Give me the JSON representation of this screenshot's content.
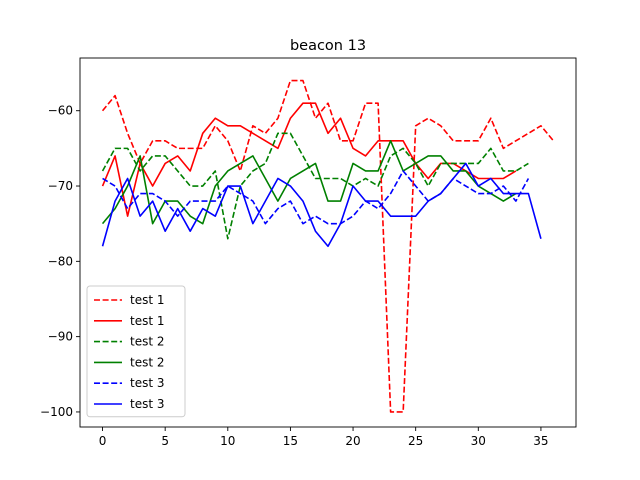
{
  "chart_data": {
    "type": "line",
    "title": "beacon 13",
    "xlabel": "",
    "ylabel": "",
    "xlim": [
      -1.8,
      37.8
    ],
    "ylim": [
      -102,
      -53
    ],
    "xticks": [
      0,
      5,
      10,
      15,
      20,
      25,
      30,
      35
    ],
    "yticks": [
      -100,
      -90,
      -80,
      -70,
      -60
    ],
    "grid": false,
    "legend_position": "lower-left",
    "series": [
      {
        "name": "test 1",
        "color": "#ff0000",
        "dash": "dashed",
        "x": [
          0,
          1,
          2,
          3,
          4,
          5,
          6,
          7,
          8,
          9,
          10,
          11,
          12,
          13,
          14,
          15,
          16,
          17,
          18,
          19,
          20,
          21,
          22,
          23,
          24,
          25,
          26,
          27,
          28,
          29,
          30,
          31,
          32,
          33,
          34,
          35,
          36
        ],
        "y": [
          -60,
          -58,
          -63,
          -67,
          -64,
          -64,
          -65,
          -65,
          -65,
          -62,
          -64,
          -68,
          -62,
          -63,
          -61,
          -56,
          -56,
          -61,
          -59,
          -64,
          -64,
          -59,
          -59,
          -100,
          -100,
          -62,
          -61,
          -62,
          -64,
          -64,
          -64,
          -61,
          -65,
          -64,
          -63,
          -62,
          -64
        ]
      },
      {
        "name": "test 1",
        "color": "#ff0000",
        "dash": "solid",
        "x": [
          0,
          1,
          2,
          3,
          4,
          5,
          6,
          7,
          8,
          9,
          10,
          11,
          12,
          13,
          14,
          15,
          16,
          17,
          18,
          19,
          20,
          21,
          22,
          23,
          24,
          25,
          26,
          27,
          28,
          29,
          30,
          31,
          32,
          33
        ],
        "y": [
          -70,
          -66,
          -74,
          -67,
          -70,
          -67,
          -66,
          -68,
          -63,
          -61,
          -62,
          -62,
          -63,
          -64,
          -65,
          -61,
          -59,
          -59,
          -63,
          -61,
          -65,
          -66,
          -64,
          -64,
          -64,
          -67,
          -69,
          -67,
          -67,
          -68,
          -69,
          -69,
          -69,
          -68
        ]
      },
      {
        "name": "test 2",
        "color": "#008000",
        "dash": "dashed",
        "x": [
          0,
          1,
          2,
          3,
          4,
          5,
          6,
          7,
          8,
          9,
          10,
          11,
          12,
          13,
          14,
          15,
          16,
          17,
          18,
          19,
          20,
          21,
          22,
          23,
          24,
          25,
          26,
          27,
          28,
          29,
          30,
          31,
          32,
          33,
          34
        ],
        "y": [
          -68,
          -65,
          -65,
          -68,
          -66,
          -66,
          -68,
          -70,
          -70,
          -68,
          -77,
          -70,
          -68,
          -67,
          -63,
          -63,
          -66,
          -69,
          -69,
          -69,
          -70,
          -69,
          -70,
          -66,
          -65,
          -67,
          -70,
          -67,
          -67,
          -67,
          -67,
          -65,
          -68,
          -68,
          -67
        ]
      },
      {
        "name": "test 2",
        "color": "#008000",
        "dash": "solid",
        "x": [
          0,
          1,
          2,
          3,
          4,
          5,
          6,
          7,
          8,
          9,
          10,
          11,
          12,
          13,
          14,
          15,
          16,
          17,
          18,
          19,
          20,
          21,
          22,
          23,
          24,
          25,
          26,
          27,
          28,
          29,
          30,
          31,
          32,
          33
        ],
        "y": [
          -75,
          -73,
          -70,
          -66,
          -75,
          -72,
          -72,
          -74,
          -75,
          -70,
          -68,
          -67,
          -66,
          -69,
          -72,
          -69,
          -68,
          -67,
          -72,
          -72,
          -67,
          -68,
          -68,
          -64,
          -68,
          -67,
          -66,
          -66,
          -68,
          -68,
          -70,
          -71,
          -72,
          -71
        ]
      },
      {
        "name": "test 3",
        "color": "#0000ff",
        "dash": "dashed",
        "x": [
          0,
          1,
          2,
          3,
          4,
          5,
          6,
          7,
          8,
          9,
          10,
          11,
          12,
          13,
          14,
          15,
          16,
          17,
          18,
          19,
          20,
          21,
          22,
          23,
          24,
          25,
          26,
          27,
          28,
          29,
          30,
          31,
          32,
          33,
          34
        ],
        "y": [
          -69,
          -70,
          -73,
          -71,
          -71,
          -72,
          -74,
          -72,
          -72,
          -72,
          -70,
          -71,
          -72,
          -75,
          -73,
          -72,
          -75,
          -74,
          -75,
          -75,
          -74,
          -72,
          -73,
          -71,
          -68,
          -70,
          -72,
          -71,
          -69,
          -70,
          -71,
          -71,
          -70,
          -72,
          -69
        ]
      },
      {
        "name": "test 3",
        "color": "#0000ff",
        "dash": "solid",
        "x": [
          0,
          1,
          2,
          3,
          4,
          5,
          6,
          7,
          8,
          9,
          10,
          11,
          12,
          13,
          14,
          15,
          16,
          17,
          18,
          19,
          20,
          21,
          22,
          23,
          24,
          25,
          26,
          27,
          28,
          29,
          30,
          31,
          32,
          33,
          34,
          35
        ],
        "y": [
          -78,
          -72,
          -69,
          -74,
          -72,
          -76,
          -73,
          -76,
          -73,
          -74,
          -70,
          -70,
          -75,
          -72,
          -69,
          -70,
          -72,
          -76,
          -78,
          -75,
          -70,
          -72,
          -72,
          -74,
          -74,
          -74,
          -72,
          -71,
          -69,
          -67,
          -70,
          -69,
          -71,
          -71,
          -71,
          -77
        ]
      }
    ]
  }
}
